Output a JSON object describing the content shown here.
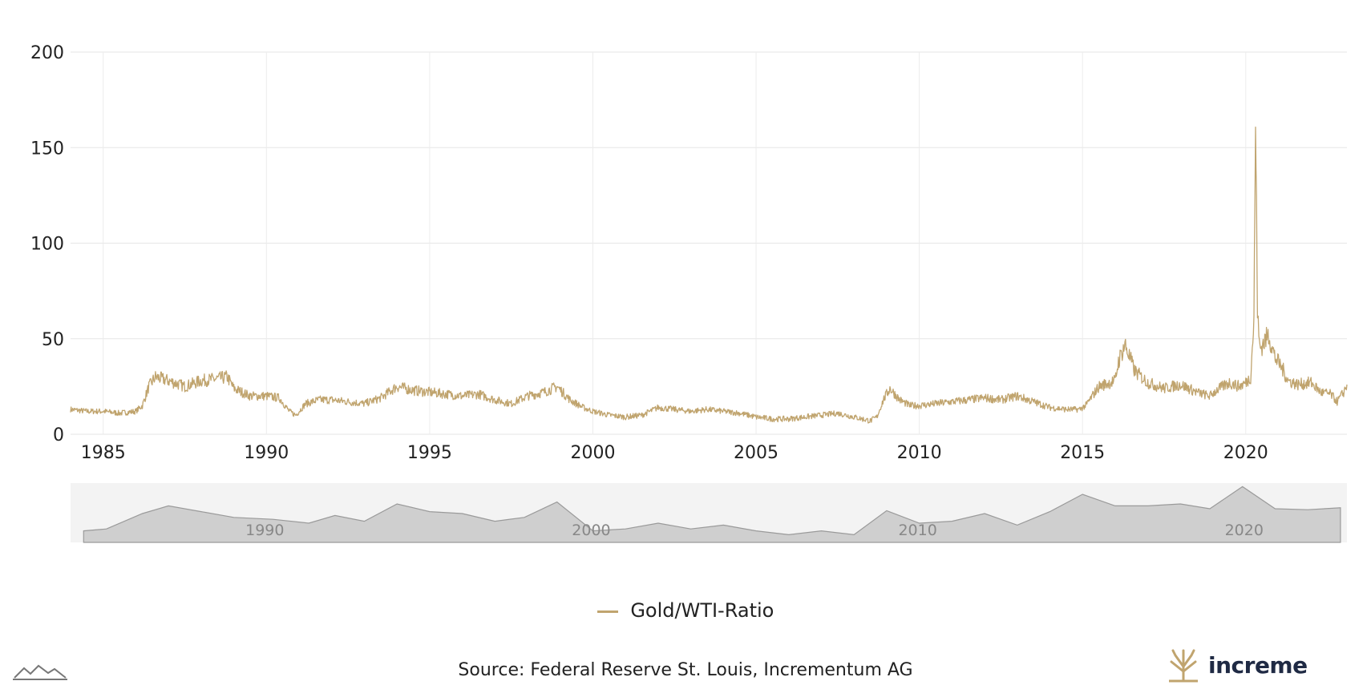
{
  "chart_data": {
    "type": "line",
    "title": "",
    "xlabel": "",
    "ylabel": "",
    "xlim": [
      1984.0,
      2023.1
    ],
    "ylim": [
      0,
      200
    ],
    "x_ticks": [
      "1985",
      "1990",
      "1995",
      "2000",
      "2005",
      "2010",
      "2015",
      "2020"
    ],
    "y_ticks": [
      "0",
      "50",
      "100",
      "150",
      "200"
    ],
    "grid": true,
    "legend_position": "bottom-center",
    "series": [
      {
        "name": "Gold/WTI-Ratio",
        "color": "#C0A46E",
        "x": [
          1984.0,
          1984.5,
          1985.0,
          1985.5,
          1986.0,
          1986.2,
          1986.4,
          1986.6,
          1987.0,
          1987.5,
          1988.0,
          1988.5,
          1988.8,
          1989.0,
          1989.5,
          1990.0,
          1990.4,
          1990.7,
          1990.9,
          1991.2,
          1991.6,
          1992.0,
          1992.5,
          1993.0,
          1993.5,
          1994.0,
          1994.5,
          1995.0,
          1995.5,
          1996.0,
          1996.5,
          1997.0,
          1997.5,
          1998.0,
          1998.5,
          1998.9,
          1999.3,
          1999.7,
          2000.0,
          2000.5,
          2001.0,
          2001.5,
          2002.0,
          2002.5,
          2003.0,
          2003.5,
          2004.0,
          2004.5,
          2005.0,
          2005.5,
          2006.0,
          2006.5,
          2007.0,
          2007.5,
          2008.0,
          2008.5,
          2008.7,
          2008.9,
          2009.1,
          2009.4,
          2009.7,
          2010.0,
          2010.5,
          2011.0,
          2011.5,
          2012.0,
          2012.5,
          2013.0,
          2013.5,
          2014.0,
          2014.5,
          2014.9,
          2015.1,
          2015.5,
          2016.0,
          2016.1,
          2016.3,
          2016.6,
          2017.0,
          2017.5,
          2018.0,
          2018.5,
          2018.9,
          2019.1,
          2019.5,
          2019.8,
          2020.0,
          2020.15,
          2020.25,
          2020.3,
          2020.33,
          2020.36,
          2020.4,
          2020.45,
          2020.55,
          2020.7,
          2020.9,
          2021.1,
          2021.3,
          2021.6,
          2022.0,
          2022.3,
          2022.6,
          2022.8,
          2023.0,
          2023.1
        ],
        "values": [
          13,
          12,
          12,
          11,
          12,
          15,
          25,
          30,
          28,
          25,
          28,
          29,
          30,
          24,
          20,
          20,
          19,
          12,
          10,
          16,
          18,
          18,
          17,
          16,
          19,
          25,
          23,
          22,
          21,
          20,
          21,
          18,
          16,
          20,
          22,
          25,
          18,
          14,
          12,
          10,
          9,
          10,
          14,
          13,
          12,
          13,
          12,
          11,
          9,
          8,
          8,
          9,
          10,
          11,
          9,
          7,
          9,
          18,
          24,
          18,
          15,
          15,
          16,
          17,
          18,
          19,
          18,
          20,
          17,
          14,
          13,
          13,
          15,
          25,
          28,
          38,
          47,
          33,
          27,
          24,
          26,
          22,
          20,
          23,
          27,
          25,
          27,
          30,
          60,
          160,
          120,
          65,
          50,
          45,
          48,
          52,
          40,
          35,
          28,
          26,
          27,
          22,
          21,
          17,
          22,
          26
        ]
      }
    ],
    "navigator": {
      "x": [
        1984.4,
        1985.1,
        1986.2,
        1987.0,
        1988.0,
        1989.0,
        1990.2,
        1991.3,
        1992.1,
        1993.0,
        1994.0,
        1995.0,
        1996.0,
        1997.0,
        1997.9,
        1998.9,
        2000.0,
        2001.0,
        2002.0,
        2003.0,
        2004.0,
        2005.0,
        2006.0,
        2007.0,
        2008.0,
        2009.0,
        2010.0,
        2011.0,
        2012.0,
        2013.0,
        2014.0,
        2015.0,
        2016.0,
        2017.0,
        2018.0,
        2018.9,
        2019.9,
        2020.9,
        2021.9,
        2022.9
      ],
      "values": [
        12,
        14,
        30,
        38,
        32,
        26,
        24,
        20,
        28,
        22,
        40,
        32,
        30,
        22,
        26,
        42,
        12,
        14,
        20,
        14,
        18,
        12,
        8,
        12,
        8,
        33,
        20,
        22,
        30,
        18,
        32,
        50,
        38,
        38,
        40,
        35,
        58,
        35,
        34,
        36
      ]
    }
  },
  "source_text": "Source: Federal Reserve St. Louis, Incrementum AG",
  "logo": {
    "name": "incrementum",
    "text": "increme",
    "icon": "tree-icon"
  },
  "watermark_icon": "mountain-line-icon"
}
